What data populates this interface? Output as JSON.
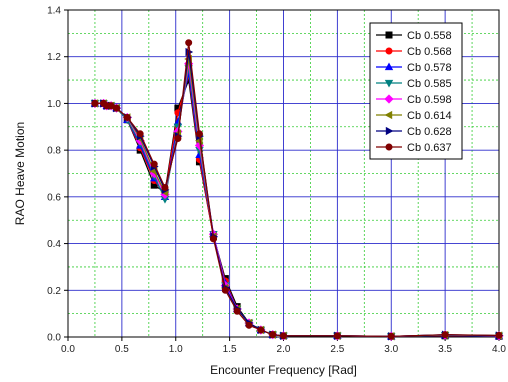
{
  "chart_data": {
    "type": "line",
    "xlabel": "Encounter Frequency [Rad]",
    "ylabel": "RAO Heave Motion",
    "xlim": [
      0.0,
      4.0
    ],
    "ylim": [
      0.0,
      1.4
    ],
    "x_ticks": [
      "0.0",
      "0.5",
      "1.0",
      "1.5",
      "2.0",
      "2.5",
      "3.0",
      "3.5",
      "4.0"
    ],
    "y_ticks": [
      "0.0",
      "0.2",
      "0.4",
      "0.6",
      "0.8",
      "1.0",
      "1.2",
      "1.4"
    ],
    "grid": {
      "major": true,
      "minor": true,
      "major_color": "#2b2bcc",
      "minor_color": "#33cc33"
    },
    "legend_position": "top-right",
    "x": [
      0.25,
      0.33,
      0.36,
      0.4,
      0.45,
      0.55,
      0.67,
      0.8,
      0.9,
      1.02,
      1.12,
      1.22,
      1.35,
      1.46,
      1.57,
      1.68,
      1.79,
      1.9,
      2.0,
      2.5,
      3.0,
      3.5,
      4.0
    ],
    "series": [
      {
        "name": "Cb 0.558",
        "color": "#000000",
        "marker": "square",
        "values": [
          1.0,
          1.0,
          0.99,
          0.99,
          0.98,
          0.93,
          0.8,
          0.65,
          0.62,
          0.98,
          1.1,
          0.75,
          0.43,
          0.25,
          0.13,
          0.06,
          0.03,
          0.01,
          0.005,
          0.005,
          0.003,
          0.005,
          0.003
        ]
      },
      {
        "name": "Cb 0.568",
        "color": "#ff0000",
        "marker": "circle",
        "values": [
          1.0,
          1.0,
          0.99,
          0.99,
          0.98,
          0.93,
          0.81,
          0.67,
          0.61,
          0.96,
          1.12,
          0.76,
          0.43,
          0.24,
          0.12,
          0.06,
          0.03,
          0.01,
          0.005,
          0.005,
          0.003,
          0.006,
          0.004
        ]
      },
      {
        "name": "Cb 0.578",
        "color": "#0000ff",
        "marker": "triangle-up",
        "values": [
          1.0,
          1.0,
          0.99,
          0.99,
          0.98,
          0.93,
          0.82,
          0.68,
          0.6,
          0.92,
          1.13,
          0.78,
          0.44,
          0.23,
          0.12,
          0.06,
          0.03,
          0.01,
          0.005,
          0.005,
          0.003,
          0.007,
          0.004
        ]
      },
      {
        "name": "Cb 0.585",
        "color": "#008080",
        "marker": "triangle-down",
        "values": [
          1.0,
          1.0,
          0.99,
          0.99,
          0.98,
          0.93,
          0.83,
          0.69,
          0.59,
          0.9,
          1.15,
          0.8,
          0.44,
          0.22,
          0.12,
          0.06,
          0.03,
          0.01,
          0.005,
          0.005,
          0.003,
          0.008,
          0.005
        ]
      },
      {
        "name": "Cb 0.598",
        "color": "#ff00ff",
        "marker": "diamond",
        "values": [
          1.0,
          1.0,
          0.99,
          0.99,
          0.98,
          0.94,
          0.84,
          0.7,
          0.61,
          0.88,
          1.17,
          0.82,
          0.44,
          0.22,
          0.12,
          0.06,
          0.03,
          0.01,
          0.005,
          0.005,
          0.003,
          0.009,
          0.005
        ]
      },
      {
        "name": "Cb 0.614",
        "color": "#808000",
        "marker": "triangle-left",
        "values": [
          1.0,
          1.0,
          0.99,
          0.99,
          0.98,
          0.94,
          0.85,
          0.71,
          0.62,
          0.87,
          1.19,
          0.84,
          0.43,
          0.21,
          0.12,
          0.06,
          0.03,
          0.01,
          0.005,
          0.005,
          0.003,
          0.009,
          0.006
        ]
      },
      {
        "name": "Cb 0.628",
        "color": "#000080",
        "marker": "triangle-right",
        "values": [
          1.0,
          1.0,
          0.99,
          0.99,
          0.98,
          0.94,
          0.86,
          0.73,
          0.63,
          0.86,
          1.22,
          0.86,
          0.43,
          0.21,
          0.12,
          0.06,
          0.03,
          0.01,
          0.005,
          0.005,
          0.003,
          0.01,
          0.006
        ]
      },
      {
        "name": "Cb 0.637",
        "color": "#800000",
        "marker": "circle",
        "values": [
          1.0,
          1.0,
          0.99,
          0.99,
          0.98,
          0.94,
          0.87,
          0.74,
          0.64,
          0.85,
          1.26,
          0.87,
          0.42,
          0.2,
          0.11,
          0.05,
          0.03,
          0.01,
          0.005,
          0.005,
          0.003,
          0.01,
          0.007
        ]
      }
    ]
  }
}
